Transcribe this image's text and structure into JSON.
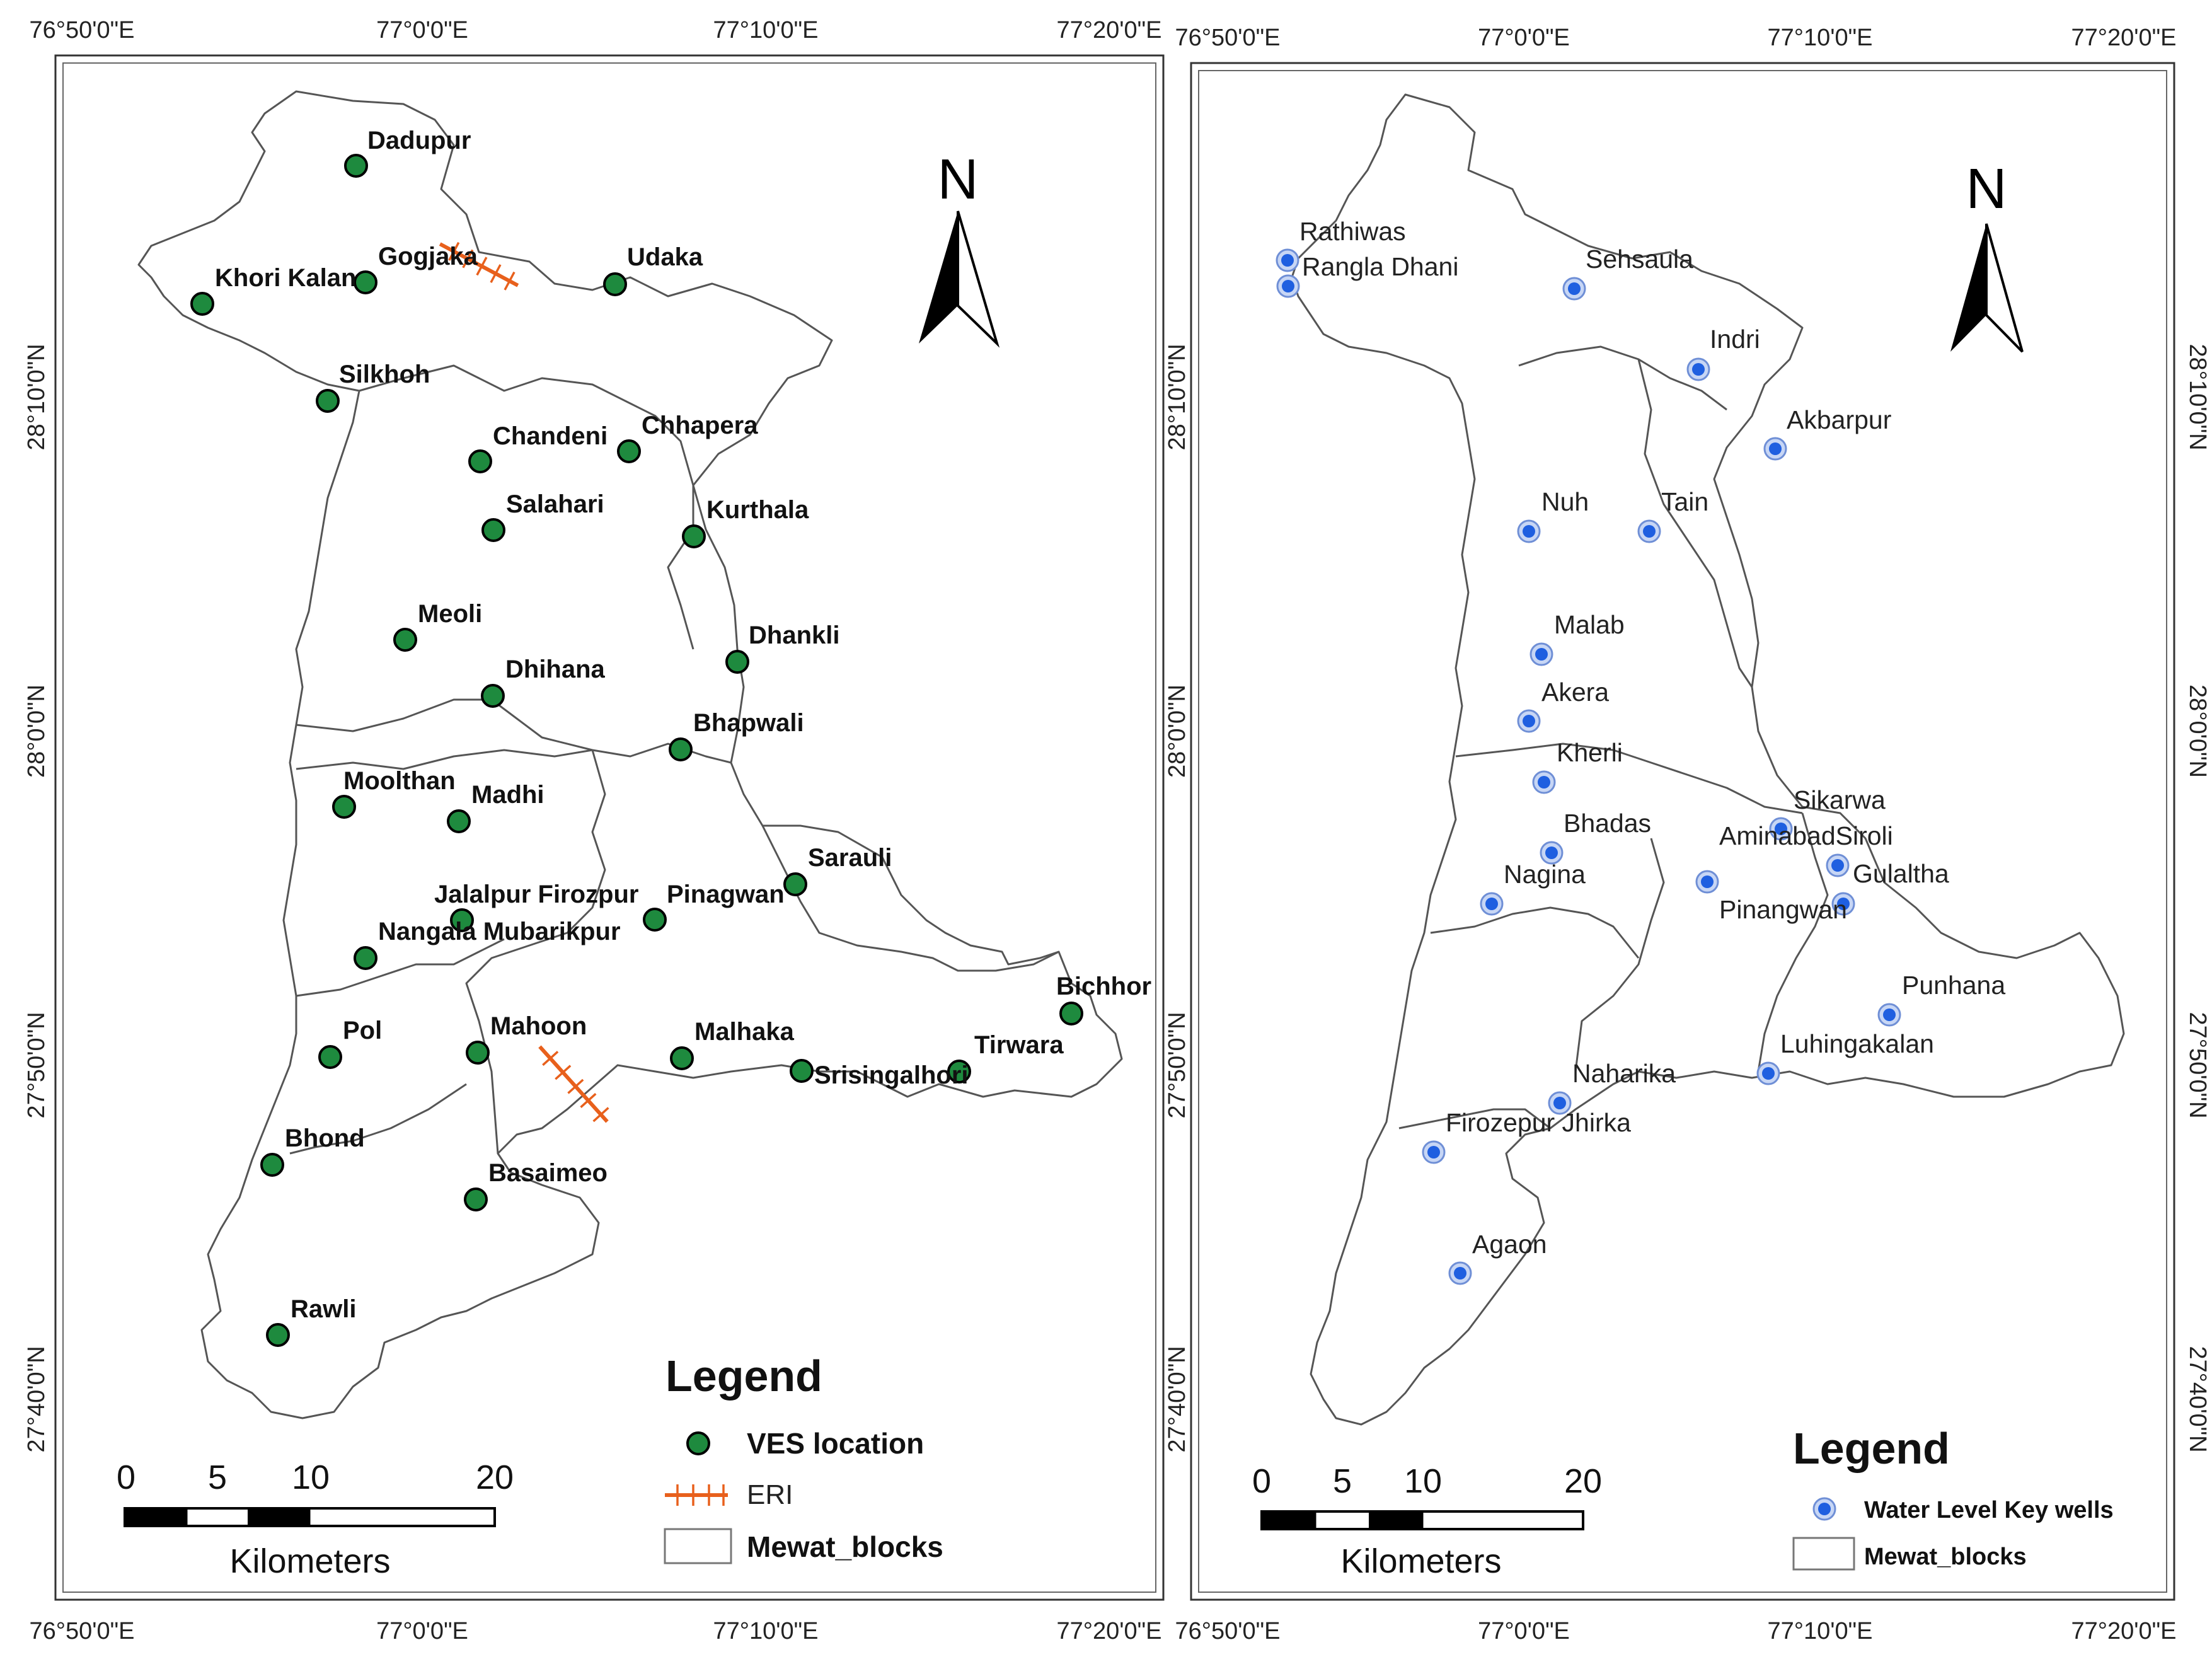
{
  "left_map": {
    "top_ticks": [
      "76°50'0\"E",
      "77°0'0\"E",
      "77°10'0\"E",
      "77°20'0\"E"
    ],
    "bottom_ticks": [
      "76°50'0\"E",
      "77°0'0\"E",
      "77°10'0\"E",
      "77°20'0\"E"
    ],
    "lat_ticks": [
      "28°10'0\"N",
      "28°0'0\"N",
      "27°50'0\"N",
      "27°40'0\"N"
    ],
    "north_label": "N",
    "points": [
      "Dadupur",
      "Gogjaka",
      "Khori Kalan",
      "Udaka",
      "Silkhoh",
      "Chandeni",
      "Chhapera",
      "Salahari",
      "Kurthala",
      "Meoli",
      "Dhankli",
      "Dhihana",
      "Bhapwali",
      "Moolthan",
      "Madhi",
      "Sarauli",
      "Jalalpur Firozpur",
      "Pinagwan",
      "Nangala Mubarikpur",
      "Bichhor",
      "Pol",
      "Mahoon",
      "Malhaka",
      "Tirwara",
      "Srisingalhori",
      "Bhond",
      "Basaimeo",
      "Rawli"
    ],
    "legend": {
      "title": "Legend",
      "items": [
        "VES location",
        "ERI",
        "Mewat_blocks"
      ],
      "colors": {
        "ves": "#1e8a3e",
        "eri": "#e8601c"
      }
    },
    "scale": {
      "numbers": [
        "0",
        "5",
        "10",
        "20"
      ],
      "unit": "Kilometers"
    }
  },
  "right_map": {
    "top_ticks": [
      "76°50'0\"E",
      "77°0'0\"E",
      "77°10'0\"E",
      "77°20'0\"E"
    ],
    "bottom_ticks": [
      "76°50'0\"E",
      "77°0'0\"E",
      "77°10'0\"E",
      "77°20'0\"E"
    ],
    "lat_ticks": [
      "28°10'0\"N",
      "28°0'0\"N",
      "27°50'0\"N",
      "27°40'0\"N"
    ],
    "north_label": "N",
    "points": [
      "Rathiwas",
      "Rangla Dhani",
      "Sehsaula",
      "Indri",
      "Akbarpur",
      "Nuh",
      "Tain",
      "Malab",
      "Akera",
      "Kherli",
      "Sikarwa",
      "AminabadSiroli",
      "Bhadas",
      "Gulaltha",
      "Nagina",
      "Pinangwan",
      "Punhana",
      "Luhingakalan",
      "Naharika",
      "Firozepur Jhirka",
      "Agaon"
    ],
    "legend": {
      "title": "Legend",
      "items": [
        "Water Level Key wells",
        "Mewat_blocks"
      ],
      "colors": {
        "well": "#1f5fe0"
      }
    },
    "scale": {
      "numbers": [
        "0",
        "5",
        "10",
        "20"
      ],
      "unit": "Kilometers"
    }
  }
}
